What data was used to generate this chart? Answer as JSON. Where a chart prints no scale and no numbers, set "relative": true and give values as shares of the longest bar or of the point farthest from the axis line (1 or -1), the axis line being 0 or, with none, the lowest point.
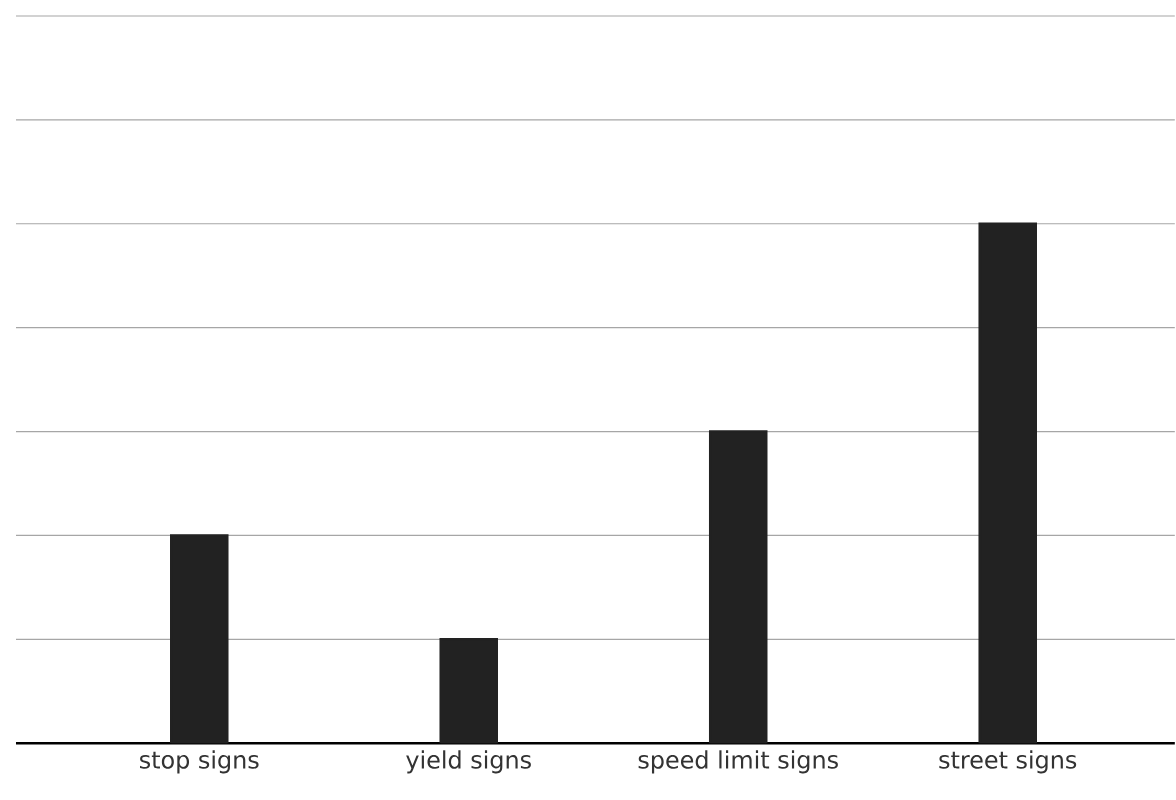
{
  "chart_data": {
    "type": "bar",
    "relative": true,
    "grid": "y",
    "color": "#222222",
    "categories": [
      "stop signs",
      "yield signs",
      "speed limit signs",
      "street signs"
    ],
    "values": [
      0.4,
      0.2,
      0.6,
      1
    ]
  }
}
